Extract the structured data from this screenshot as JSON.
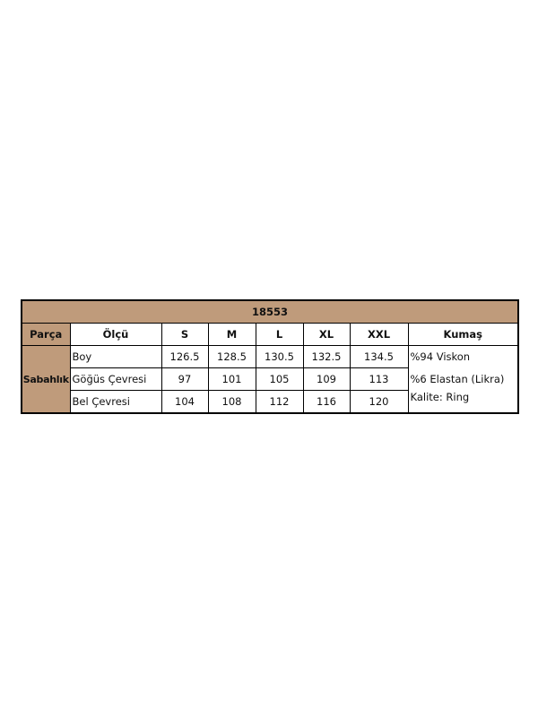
{
  "title": "18553",
  "headers": [
    "Parça",
    "Ölçü",
    "S",
    "M",
    "L",
    "XL",
    "XXL",
    "Kumaş"
  ],
  "part": "Sabahlık",
  "rows": [
    {
      "label": "Boy",
      "values": [
        "126.5",
        "128.5",
        "130.5",
        "132.5",
        "134.5"
      ]
    },
    {
      "label": "Göğüs Çevresi",
      "values": [
        "97",
        "101",
        "105",
        "109",
        "113"
      ]
    },
    {
      "label": "Bel Çevresi",
      "values": [
        "104",
        "108",
        "112",
        "116",
        "120"
      ]
    }
  ],
  "fabric": [
    "%94 Viskon",
    "%6 Elastan (Likra)",
    "Kalite: Ring"
  ],
  "colors": {
    "header_bg": "#bf9b7b"
  }
}
